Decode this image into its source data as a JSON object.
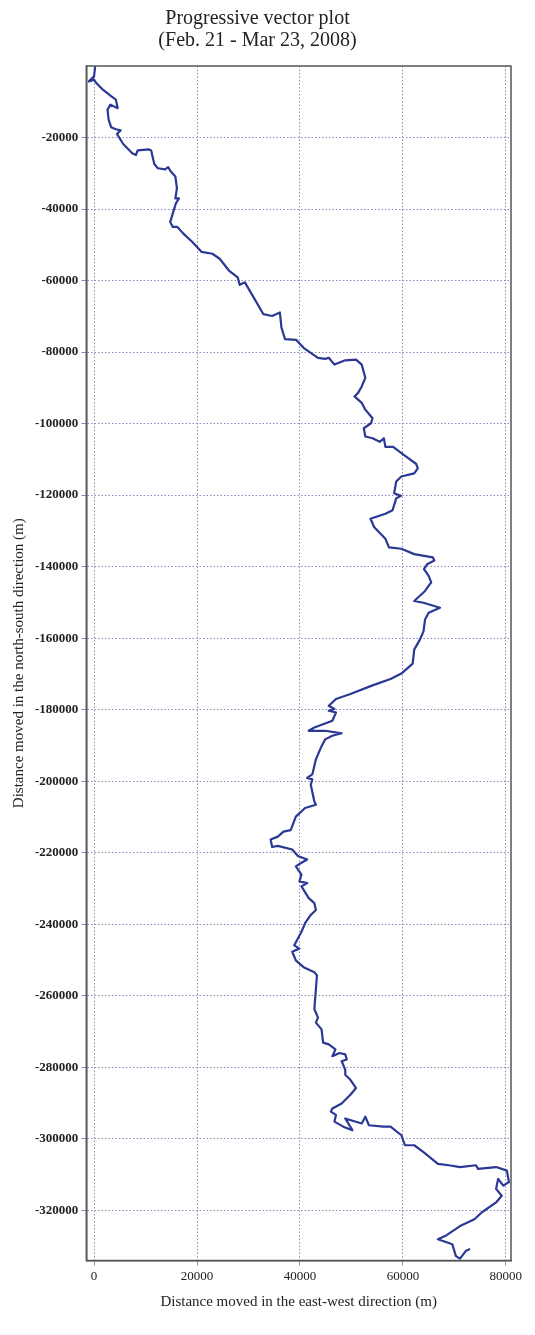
{
  "chart_data": {
    "type": "line",
    "title": "Progressive vector plot",
    "subtitle": "(Feb. 21 - Mar 23, 2008)",
    "xlabel": "Distance moved in the east-west direction (m)",
    "ylabel": "Distance moved in the north-south direction (m)",
    "xlim": [
      -1500,
      81000
    ],
    "ylim": [
      -334000,
      0
    ],
    "xticks": [
      0,
      20000,
      40000,
      60000,
      80000
    ],
    "yticks": [
      -20000,
      -40000,
      -60000,
      -80000,
      -100000,
      -120000,
      -140000,
      -160000,
      -180000,
      -200000,
      -220000,
      -240000,
      -260000,
      -280000,
      -300000,
      -320000
    ],
    "grid": true,
    "legend": false,
    "marker": "none",
    "line_style": "solid",
    "series": [
      {
        "color": "#2b3894",
        "x": [
          200,
          0,
          -1000,
          0,
          350,
          1770,
          3180,
          4240,
          4600,
          3180,
          2620,
          2830,
          3320,
          4240,
          5160,
          4450,
          5660,
          7420,
          8130,
          8480,
          10600,
          11100,
          11700,
          12400,
          13800,
          14400,
          14900,
          15800,
          16100,
          15800,
          16500,
          15900,
          15300,
          14800,
          15300,
          16200,
          17300,
          19100,
          20900,
          23000,
          24400,
          26200,
          27900,
          28300,
          29300,
          30800,
          32900,
          34600,
          36100,
          36400,
          37100,
          39300,
          40700,
          43500,
          44900,
          45600,
          46700,
          48800,
          50900,
          52000,
          52700,
          52000,
          51300,
          50600,
          52000,
          52700,
          54100,
          53800,
          52400,
          52700,
          54100,
          55500,
          56300,
          56600,
          58100,
          60100,
          62600,
          62900,
          62200,
          59700,
          58700,
          58300,
          59600,
          58700,
          58000,
          56600,
          53700,
          54400,
          56600,
          57300,
          59700,
          62200,
          65800,
          66100,
          64700,
          64100,
          65000,
          65500,
          64300,
          62200,
          64000,
          67200,
          65000,
          64300,
          64000,
          63300,
          62200,
          61900,
          59700,
          57600,
          54100,
          49800,
          47000,
          45600,
          46700,
          45600,
          47000,
          46300,
          42800,
          41700,
          44900,
          48100,
          46300,
          44900,
          44200,
          43100,
          42400,
          41400,
          42400,
          42100,
          42800,
          43100,
          41000,
          39200,
          38200,
          36800,
          35700,
          34300,
          34600,
          35700,
          38500,
          39600,
          41400,
          40300,
          39200,
          40300,
          39900,
          41400,
          40300,
          41700,
          42800,
          43100,
          42100,
          41000,
          40300,
          38900,
          39900,
          38500,
          39200,
          40700,
          42800,
          43300,
          43100,
          42800,
          43500,
          43100,
          44200,
          44500,
          45600,
          46900,
          46300,
          47700,
          48800,
          49100,
          48100,
          48800,
          48800,
          49800,
          50900,
          49800,
          48100,
          46300,
          46000,
          47000,
          46700,
          48400,
          50200,
          48800,
          52000,
          52700,
          53400,
          56200,
          57600,
          59700,
          60400,
          62200,
          64000,
          66800,
          68900,
          71100,
          74200,
          74600,
          78100,
          80200,
          80600,
          79500,
          78500,
          78100,
          79200,
          78100,
          75300,
          73900,
          71100,
          68200,
          66800,
          69600,
          70300,
          71100,
          72200,
          72900
        ],
        "values": [
          -300,
          -2900,
          -4300,
          -3800,
          -4600,
          -6700,
          -8300,
          -9400,
          -11800,
          -10800,
          -12200,
          -15000,
          -17100,
          -17700,
          -18000,
          -19000,
          -21800,
          -24400,
          -24900,
          -23600,
          -23300,
          -23600,
          -27400,
          -28600,
          -28900,
          -28300,
          -29500,
          -30900,
          -34200,
          -37000,
          -37000,
          -38400,
          -41200,
          -43600,
          -45000,
          -45000,
          -46800,
          -49200,
          -52000,
          -52500,
          -53900,
          -57200,
          -59100,
          -61200,
          -60500,
          -64200,
          -69400,
          -69900,
          -68900,
          -73100,
          -76400,
          -76600,
          -78800,
          -81600,
          -81900,
          -81600,
          -83500,
          -82300,
          -82100,
          -83500,
          -87200,
          -89600,
          -91400,
          -92400,
          -94200,
          -96100,
          -98500,
          -99900,
          -101300,
          -103600,
          -104100,
          -105100,
          -104100,
          -106500,
          -106500,
          -108700,
          -111300,
          -112500,
          -113900,
          -114800,
          -116200,
          -119500,
          -120200,
          -120900,
          -124200,
          -125200,
          -126600,
          -128900,
          -132200,
          -134600,
          -135000,
          -136500,
          -137400,
          -138300,
          -139300,
          -140700,
          -142600,
          -144400,
          -146800,
          -149600,
          -150100,
          -151500,
          -152900,
          -154800,
          -158100,
          -160400,
          -163200,
          -167100,
          -169900,
          -171400,
          -173200,
          -175600,
          -177000,
          -178900,
          -179800,
          -180300,
          -180800,
          -183100,
          -185000,
          -185900,
          -185900,
          -186600,
          -187300,
          -188300,
          -190200,
          -193900,
          -198100,
          -199100,
          -199500,
          -201000,
          -205700,
          -206600,
          -207500,
          -209900,
          -213700,
          -214100,
          -215500,
          -216300,
          -218400,
          -218100,
          -219100,
          -220900,
          -221900,
          -222800,
          -223800,
          -226100,
          -228000,
          -228500,
          -229400,
          -232700,
          -234100,
          -236000,
          -237400,
          -239700,
          -242100,
          -245900,
          -246800,
          -247700,
          -250100,
          -252000,
          -253400,
          -254300,
          -258100,
          -263700,
          -266100,
          -267500,
          -269400,
          -273100,
          -273600,
          -275000,
          -276900,
          -276000,
          -276400,
          -277800,
          -278300,
          -280700,
          -282100,
          -283500,
          -285800,
          -287700,
          -290100,
          -291500,
          -292400,
          -293300,
          -295200,
          -296600,
          -297600,
          -294300,
          -295700,
          -293800,
          -296200,
          -296600,
          -296600,
          -299000,
          -301800,
          -301800,
          -303700,
          -307000,
          -307400,
          -307900,
          -307400,
          -308400,
          -307900,
          -308900,
          -312100,
          -313100,
          -311200,
          -314000,
          -315900,
          -317800,
          -320600,
          -322500,
          -324400,
          -327200,
          -328100,
          -329500,
          -332800,
          -333500,
          -331400,
          -330900
        ]
      }
    ]
  }
}
